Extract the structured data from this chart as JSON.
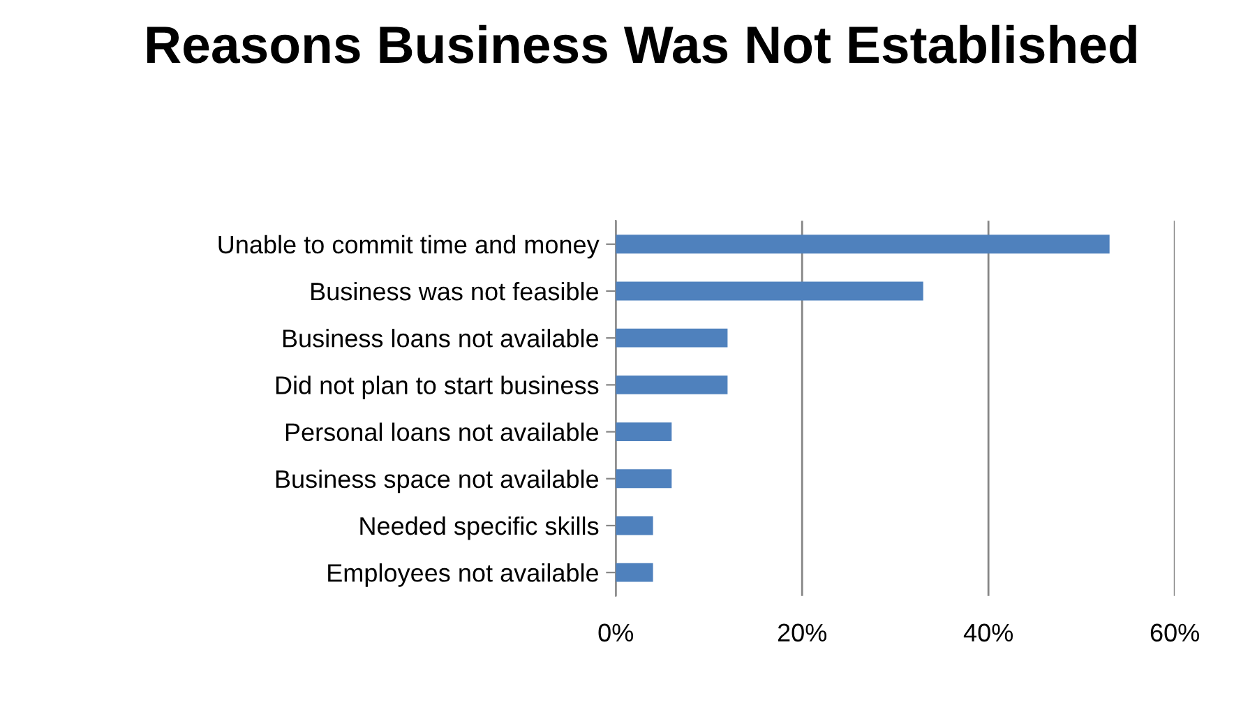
{
  "chart_data": {
    "type": "bar",
    "orientation": "horizontal",
    "title": "Reasons Business Was Not Established",
    "categories": [
      "Unable to commit time and money",
      "Business was not feasible",
      "Business loans not available",
      "Did not plan to start business",
      "Personal loans not available",
      "Business space not available",
      "Needed specific skills",
      "Employees not available"
    ],
    "values": [
      53,
      33,
      12,
      12,
      6,
      6,
      4,
      4
    ],
    "color": "#4f81bd",
    "xlim": [
      0,
      60
    ],
    "xticks": [
      {
        "value": 0,
        "label": "0%"
      },
      {
        "value": 20,
        "label": "20%"
      },
      {
        "value": 40,
        "label": "40%"
      },
      {
        "value": 60,
        "label": "60%"
      }
    ],
    "grid": "x"
  }
}
